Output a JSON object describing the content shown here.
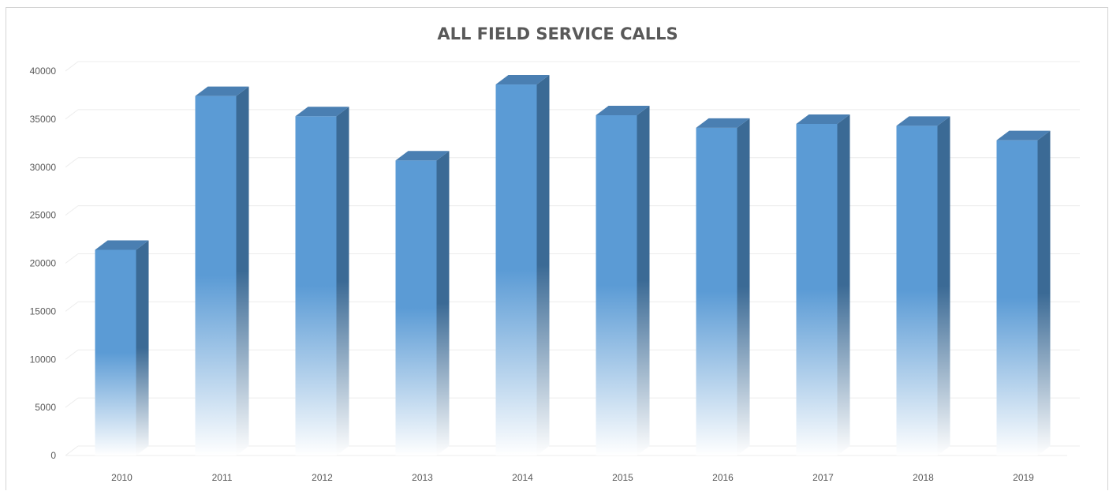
{
  "chart_data": {
    "type": "bar",
    "title": "ALL FIELD SERVICE CALLS",
    "xlabel": "",
    "ylabel": "",
    "categories": [
      "2010",
      "2011",
      "2012",
      "2013",
      "2014",
      "2015",
      "2016",
      "2017",
      "2018",
      "2019"
    ],
    "values": [
      21400,
      37400,
      35300,
      30700,
      38600,
      35400,
      34100,
      34500,
      34300,
      32800
    ],
    "ylim": [
      0,
      40000
    ],
    "yticks": [
      "0",
      "5000",
      "10000",
      "15000",
      "20000",
      "25000",
      "30000",
      "35000",
      "40000"
    ],
    "grid": true,
    "legend": "none",
    "style": "3d-column",
    "colors": {
      "bar_front": "#5b9bd5",
      "bar_side": "#3b6a95",
      "bar_top": "#4a7fb2",
      "bar_fade": "#ffffff",
      "grid": "#ececec",
      "text": "#595959"
    }
  }
}
